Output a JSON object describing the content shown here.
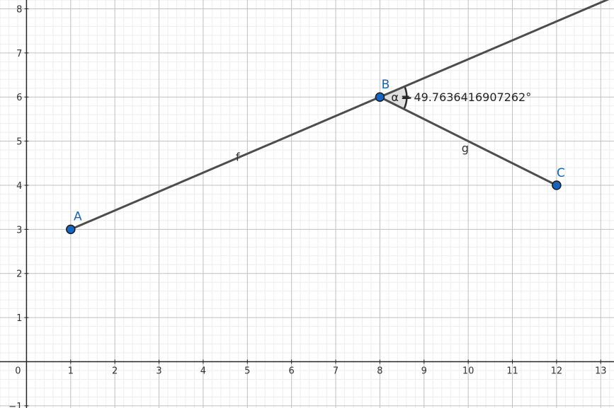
{
  "chart_data": {
    "type": "geometry",
    "xlim": [
      -0.6,
      13.3
    ],
    "ylim": [
      -1.05,
      8.2
    ],
    "grid": true,
    "x_ticks": [
      {
        "value": 0,
        "label": "0"
      },
      {
        "value": 1,
        "label": "1"
      },
      {
        "value": 2,
        "label": "2"
      },
      {
        "value": 3,
        "label": "3"
      },
      {
        "value": 4,
        "label": "4"
      },
      {
        "value": 5,
        "label": "5"
      },
      {
        "value": 6,
        "label": "6"
      },
      {
        "value": 7,
        "label": "7"
      },
      {
        "value": 8,
        "label": "8"
      },
      {
        "value": 9,
        "label": "9"
      },
      {
        "value": 10,
        "label": "10"
      },
      {
        "value": 11,
        "label": "11"
      },
      {
        "value": 12,
        "label": "12"
      },
      {
        "value": 13,
        "label": "13"
      }
    ],
    "y_ticks": [
      {
        "value": -1,
        "label": "−1"
      },
      {
        "value": 1,
        "label": "1"
      },
      {
        "value": 2,
        "label": "2"
      },
      {
        "value": 3,
        "label": "3"
      },
      {
        "value": 4,
        "label": "4"
      },
      {
        "value": 5,
        "label": "5"
      },
      {
        "value": 6,
        "label": "6"
      },
      {
        "value": 7,
        "label": "7"
      },
      {
        "value": 8,
        "label": "8"
      }
    ],
    "points": [
      {
        "label": "A",
        "x": 1,
        "y": 3
      },
      {
        "label": "B",
        "x": 8,
        "y": 6
      },
      {
        "label": "C",
        "x": 12,
        "y": 4
      }
    ],
    "ray_f": {
      "label": "f",
      "from": [
        1,
        3
      ],
      "through": [
        8,
        6
      ]
    },
    "segment_g": {
      "label": "g",
      "from": [
        8,
        6
      ],
      "to": [
        12,
        4
      ]
    },
    "angle": {
      "vertex": [
        8,
        6
      ],
      "symbol": "α",
      "value_text": "= 49.7636416907262°"
    },
    "colors": {
      "grid_minor": "#eeeeee",
      "grid_major": "#c0c0c0",
      "axis": "#252525",
      "line": "#4d4d4d",
      "point_fill": "#1565c0",
      "point_stroke": "#1a1a1a",
      "point_label": "#1565c0",
      "angle_fill": "#d9d9d9"
    }
  }
}
